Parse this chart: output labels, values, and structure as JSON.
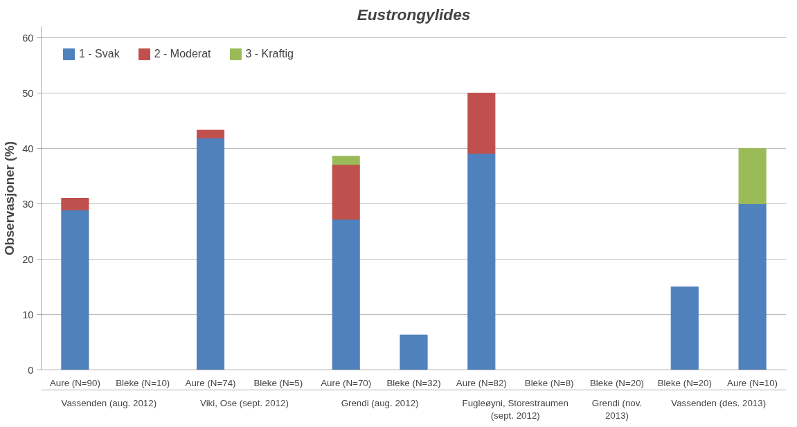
{
  "chart_data": {
    "type": "bar",
    "title": "Eustrongylides",
    "ylabel": "Observasjoner (%)",
    "categories": [
      "Aure (N=90)",
      "Bleke (N=10)",
      "Aure (N=74)",
      "Bleke (N=5)",
      "Aure (N=70)",
      "Bleke (N=32)",
      "Aure (N=82)",
      "Bleke (N=8)",
      "Bleke (N=20)",
      "Bleke (N=20)",
      "Aure (N=10)"
    ],
    "stacked": true,
    "series": [
      {
        "name": "1 - Svak",
        "color": "#4f81bd",
        "values": [
          28.9,
          null,
          41.9,
          null,
          27.2,
          6.3,
          39.1,
          null,
          null,
          15,
          30
        ]
      },
      {
        "name": "2 - Moderat",
        "color": "#c0504d",
        "values": [
          2.1,
          null,
          1.4,
          null,
          9.9,
          null,
          10.9,
          null,
          null,
          null,
          null
        ]
      },
      {
        "name": "3 - Kraftig",
        "color": "#9bbb59",
        "values": [
          null,
          null,
          null,
          null,
          1.5,
          null,
          null,
          null,
          null,
          null,
          10
        ]
      }
    ],
    "annotations": [
      "Vassenden (aug. 2012)",
      "Viki, Ose (sept. 2012)",
      "Grendi (aug. 2012)",
      "Fugleøyni, Storestraumen (sept. 2012)",
      "Grendi (nov. 2013)",
      "Vassenden (des. 2013)"
    ],
    "ylim": [
      0,
      62
    ],
    "yticks": [
      0,
      10,
      20,
      30,
      40,
      50,
      60
    ],
    "grid": "y",
    "legend": "top left"
  }
}
